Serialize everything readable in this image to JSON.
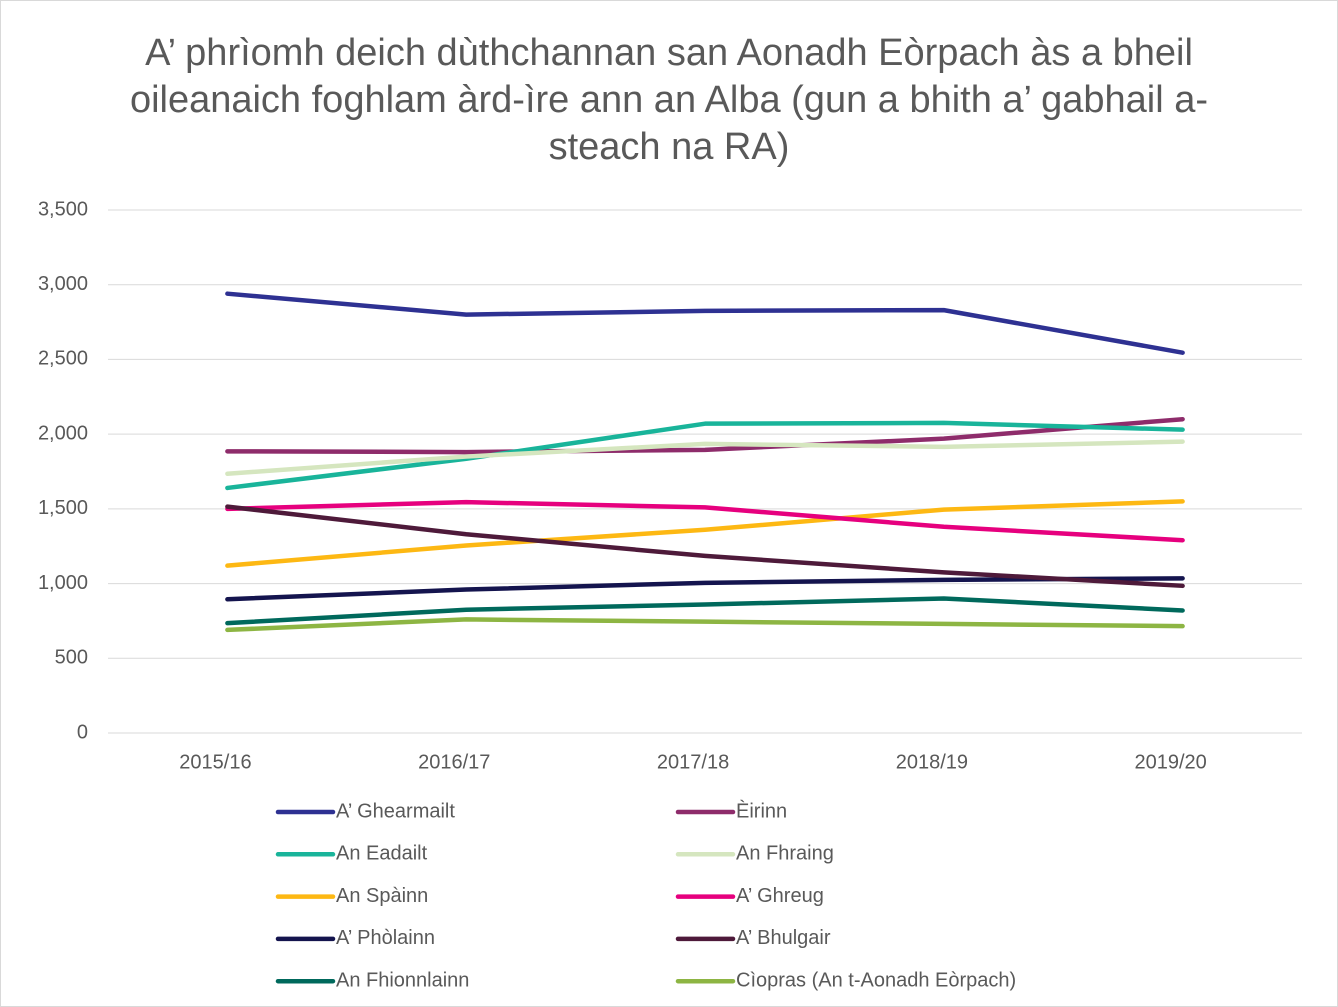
{
  "chart_data": {
    "type": "line",
    "title": "A’ phrìomh deich dùthchannan san Aonadh Eòrpach às a bheil oileanaich foghlam àrd-ìre ann an Alba (gun a bhith a’ gabhail a-steach na RA)",
    "categories": [
      "2015/16",
      "2016/17",
      "2017/18",
      "2018/19",
      "2019/20"
    ],
    "ylim": [
      0,
      3500
    ],
    "yticks": [
      0,
      500,
      {
        "value": 1000,
        "label": "1,000"
      },
      {
        "value": 1500,
        "label": "1,500"
      },
      {
        "value": 2000,
        "label": "2,000"
      },
      {
        "value": 2500,
        "label": "2,500"
      },
      {
        "value": 3000,
        "label": "3,000"
      },
      {
        "value": 3500,
        "label": "3,500"
      }
    ],
    "grid": true,
    "legend": "bottom",
    "series": [
      {
        "name": "A’ Ghearmailt",
        "color": "#2e3192",
        "values": [
          2940,
          2800,
          2825,
          2830,
          2545
        ]
      },
      {
        "name": "Èirinn",
        "color": "#8e2c6b",
        "values": [
          1885,
          1880,
          1895,
          1970,
          2100
        ]
      },
      {
        "name": "An Eadailt",
        "color": "#19b49a",
        "values": [
          1640,
          1835,
          2070,
          2075,
          2030
        ]
      },
      {
        "name": "An Fhraing",
        "color": "#d5e6bf",
        "values": [
          1735,
          1850,
          1935,
          1915,
          1950
        ]
      },
      {
        "name": "An Spàinn",
        "color": "#fdb813",
        "values": [
          1120,
          1255,
          1360,
          1495,
          1550
        ]
      },
      {
        "name": "A’ Ghreug",
        "color": "#e6007e",
        "values": [
          1500,
          1545,
          1510,
          1380,
          1290
        ]
      },
      {
        "name": "A’ Phòlainn",
        "color": "#14144e",
        "values": [
          895,
          960,
          1005,
          1025,
          1035
        ]
      },
      {
        "name": "A’ Bhulgair",
        "color": "#4e1a3a",
        "values": [
          1515,
          1330,
          1185,
          1075,
          985
        ]
      },
      {
        "name": "An Fhionnlainn",
        "color": "#00695c",
        "values": [
          735,
          825,
          860,
          900,
          820
        ]
      },
      {
        "name": "Cìopras (An t-Aonadh Eòrpach)",
        "color": "#8db543",
        "values": [
          690,
          760,
          745,
          730,
          715
        ]
      }
    ]
  }
}
